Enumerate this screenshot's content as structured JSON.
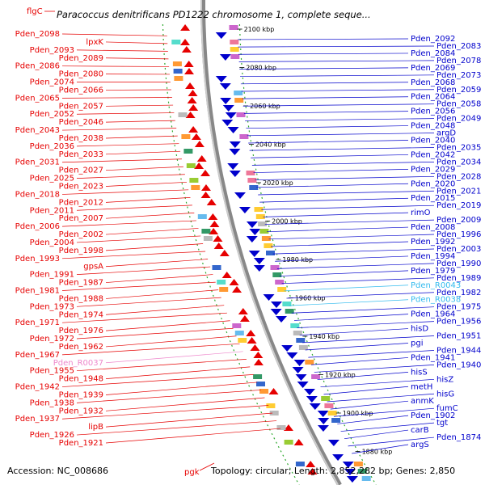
{
  "map": {
    "title": "Paracoccus denitrificans PD1222 chromosome 1, complete seque...",
    "title_gene": "flgC",
    "accession": "Accession: NC_008686",
    "pgk_label": "pgk",
    "topology": "Topology: circular; Length: 2,852,282 bp; Genes: 2,850",
    "colors": {
      "left_strand": "#e60000",
      "right_strand": "#0000cc",
      "rna": "#ee88cc",
      "rna_right": "#33bbee",
      "backbone": "#888888",
      "tick": "#228822"
    }
  },
  "ticks": [
    "2100 kbp",
    "2080 kbp",
    "2060 kbp",
    "2040 kbp",
    "2020 kbp",
    "2000 kbp",
    "1980 kbp",
    "1960 kbp",
    "1940 kbp",
    "1920 kbp",
    "1900 kbp",
    "1880 kbp"
  ],
  "left_labels": [
    "Pden_2098",
    "lpxK",
    "Pden_2093",
    "Pden_2089",
    "Pden_2086",
    "Pden_2080",
    "Pden_2074",
    "Pden_2066",
    "Pden_2065",
    "Pden_2057",
    "Pden_2052",
    "Pden_2046",
    "Pden_2043",
    "Pden_2038",
    "Pden_2036",
    "Pden_2033",
    "Pden_2031",
    "Pden_2027",
    "Pden_2025",
    "Pden_2023",
    "Pden_2018",
    "Pden_2012",
    "Pden_2011",
    "Pden_2007",
    "Pden_2006",
    "Pden_2002",
    "Pden_2004",
    "Pden_1998",
    "Pden_1993",
    "gpsA",
    "Pden_1991",
    "Pden_1987",
    "Pden_1981",
    "Pden_1988",
    "Pden_1973",
    "Pden_1974",
    "Pden_1971",
    "Pden_1976",
    "Pden_1972",
    "Pden_1962",
    "Pden_1967",
    "Pden_R0037",
    "Pden_1955",
    "Pden_1948",
    "Pden_1942",
    "Pden_1939",
    "Pden_1938",
    "Pden_1932",
    "Pden_1937",
    "lipB",
    "Pden_1926",
    "Pden_1921"
  ],
  "right_labels": [
    "Pden_2092",
    "Pden_2083",
    "Pden_2084",
    "Pden_2078",
    "Pden_2069",
    "Pden_2073",
    "Pden_2068",
    "Pden_2059",
    "Pden_2064",
    "Pden_2058",
    "Pden_2056",
    "Pden_2049",
    "Pden_2048",
    "argD",
    "Pden_2040",
    "Pden_2035",
    "Pden_2042",
    "Pden_2034",
    "Pden_2029",
    "Pden_2028",
    "Pden_2020",
    "Pden_2021",
    "Pden_2015",
    "Pden_2019",
    "rimO",
    "Pden_2009",
    "Pden_2008",
    "Pden_1996",
    "Pden_1992",
    "Pden_2003",
    "Pden_1994",
    "Pden_1990",
    "Pden_1979",
    "Pden_1989",
    "Pden_R0043",
    "Pden_1982",
    "Pden_R0038",
    "Pden_1975",
    "Pden_1964",
    "Pden_1956",
    "hisD",
    "Pden_1951",
    "pgi",
    "Pden_1944",
    "Pden_1941",
    "Pden_1940",
    "hisS",
    "hisZ",
    "metH",
    "hisG",
    "anmK",
    "fumC",
    "Pden_1902",
    "tgt",
    "carB",
    "Pden_1874",
    "argS"
  ]
}
